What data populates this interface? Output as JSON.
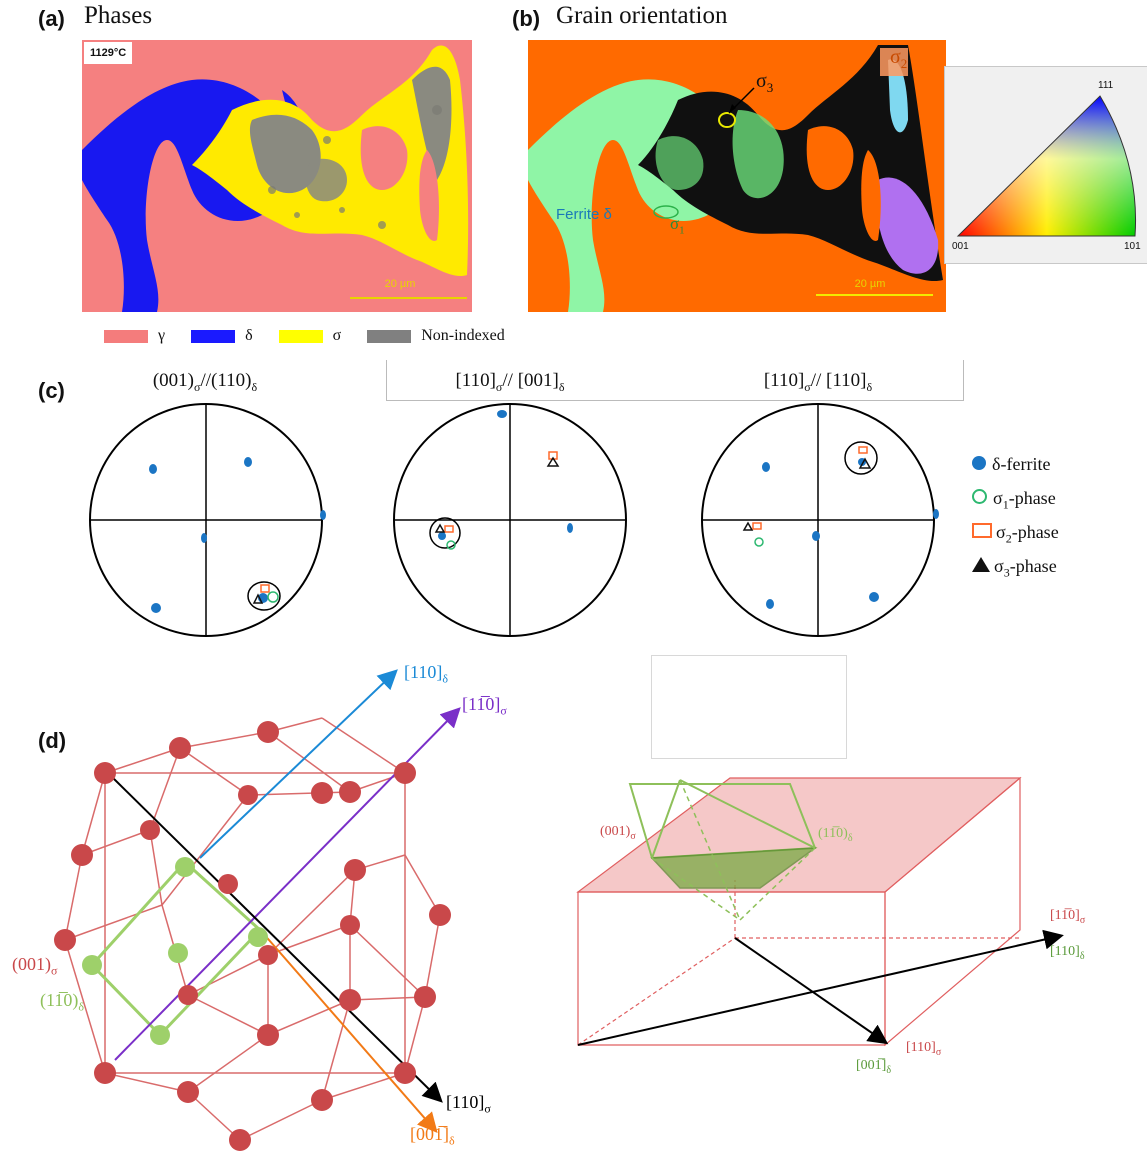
{
  "panel_a": {
    "label": "(a)",
    "title": "Phases",
    "temperature": "1129°C",
    "scale_bar": "20 µm",
    "legend": [
      {
        "symbol": "γ",
        "color": "#f47c7c"
      },
      {
        "symbol": "δ",
        "color": "#1a1aff"
      },
      {
        "symbol": "σ",
        "color": "#ffff00"
      },
      {
        "symbol": "Non-indexed",
        "color": "#808080"
      }
    ]
  },
  "panel_b": {
    "label": "(b)",
    "title": "Grain orientation",
    "scale_bar": "20 µm",
    "ferrite_label": "Ferrite δ",
    "sigma1": "σ",
    "sigma1_sub": "1",
    "sigma2": "σ",
    "sigma2_sub": "2",
    "sigma3": "σ",
    "sigma3_sub": "3",
    "ipf": {
      "top": "111",
      "left": "001",
      "right": "101"
    }
  },
  "panel_c": {
    "label": "(c)",
    "pole_figures": [
      {
        "title": "(001)",
        "s1": "σ",
        "mid": "//(110)",
        "s2": "δ"
      },
      {
        "title": "[110]",
        "s1": "σ",
        "mid": "// [001]",
        "s2": "δ"
      },
      {
        "title": "[110]",
        "s1": "σ",
        "mid": "// [110]",
        "s2": "δ"
      }
    ],
    "legend": [
      {
        "prefix": "δ-ferrite",
        "sub": "",
        "suffix": "",
        "color": "#1b75c4"
      },
      {
        "prefix": "σ",
        "sub": "1",
        "suffix": "-phase",
        "color": "#2db870"
      },
      {
        "prefix": "σ",
        "sub": "2",
        "suffix": "-phase",
        "color": "#ff6a2c"
      },
      {
        "prefix": "σ",
        "sub": "3",
        "suffix": "-phase",
        "color": "#111111"
      }
    ]
  },
  "panel_d": {
    "label": "(d)",
    "left": {
      "dir_110_delta": {
        "main": "[110]",
        "sub": "δ"
      },
      "dir_1m10_sigma": {
        "main": "[11̅0]",
        "sub": "σ"
      },
      "plane_001_sigma": {
        "main": "(001)",
        "sub": "σ"
      },
      "plane_1m10_delta": {
        "main": "(11̅0)",
        "sub": "δ"
      },
      "dir_110_sigma": {
        "main": "[110]",
        "sub": "σ"
      },
      "dir_00m1_delta": {
        "main": "[001̅]",
        "sub": "δ"
      }
    },
    "right": {
      "plane_001_sigma": {
        "main": "(001)",
        "sub": "σ"
      },
      "plane_1m10_delta": {
        "main": "(11̅0)",
        "sub": "δ"
      },
      "dir_1m10_sigma": {
        "main": "[11̅0]",
        "sub": "σ"
      },
      "dir_110_delta": {
        "main": "[110]",
        "sub": "δ"
      },
      "dir_110_sigma": {
        "main": "[110]",
        "sub": "σ"
      },
      "dir_00m1_delta": {
        "main": "[001̅]",
        "sub": "δ"
      }
    }
  }
}
